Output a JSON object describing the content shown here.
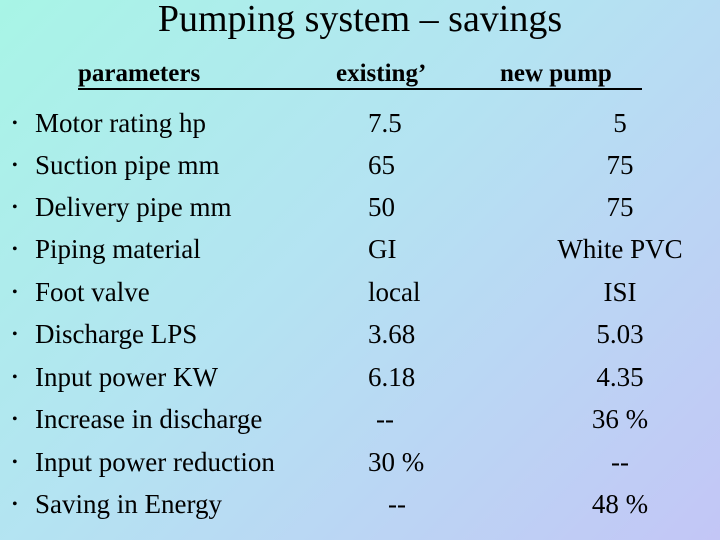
{
  "title": "Pumping system – savings",
  "headers": {
    "parameters": "parameters",
    "existing": "existing’",
    "new_pump": "new pump"
  },
  "bullet_glyph": "•",
  "rows": [
    {
      "param": "Motor rating  hp",
      "existing": "7.5",
      "new": "5"
    },
    {
      "param": "Suction pipe mm",
      "existing": "65",
      "new": "75"
    },
    {
      "param": "Delivery pipe mm",
      "existing": "50",
      "new": "75"
    },
    {
      "param": "Piping material",
      "existing": "GI",
      "new": "White PVC"
    },
    {
      "param": "Foot valve",
      "existing": "local",
      "new": "ISI"
    },
    {
      "param": "Discharge  LPS",
      "existing": "3.68",
      "new": "5.03"
    },
    {
      "param": "Input power KW",
      "existing": "6.18",
      "new": "4.35"
    },
    {
      "param": "Increase in discharge",
      "existing": "--",
      "new": "36  %"
    },
    {
      "param": "Input power reduction",
      "existing": "30  %",
      "new": "--"
    },
    {
      "param": "Saving in Energy",
      "existing": "--",
      "new": "48  %"
    }
  ]
}
